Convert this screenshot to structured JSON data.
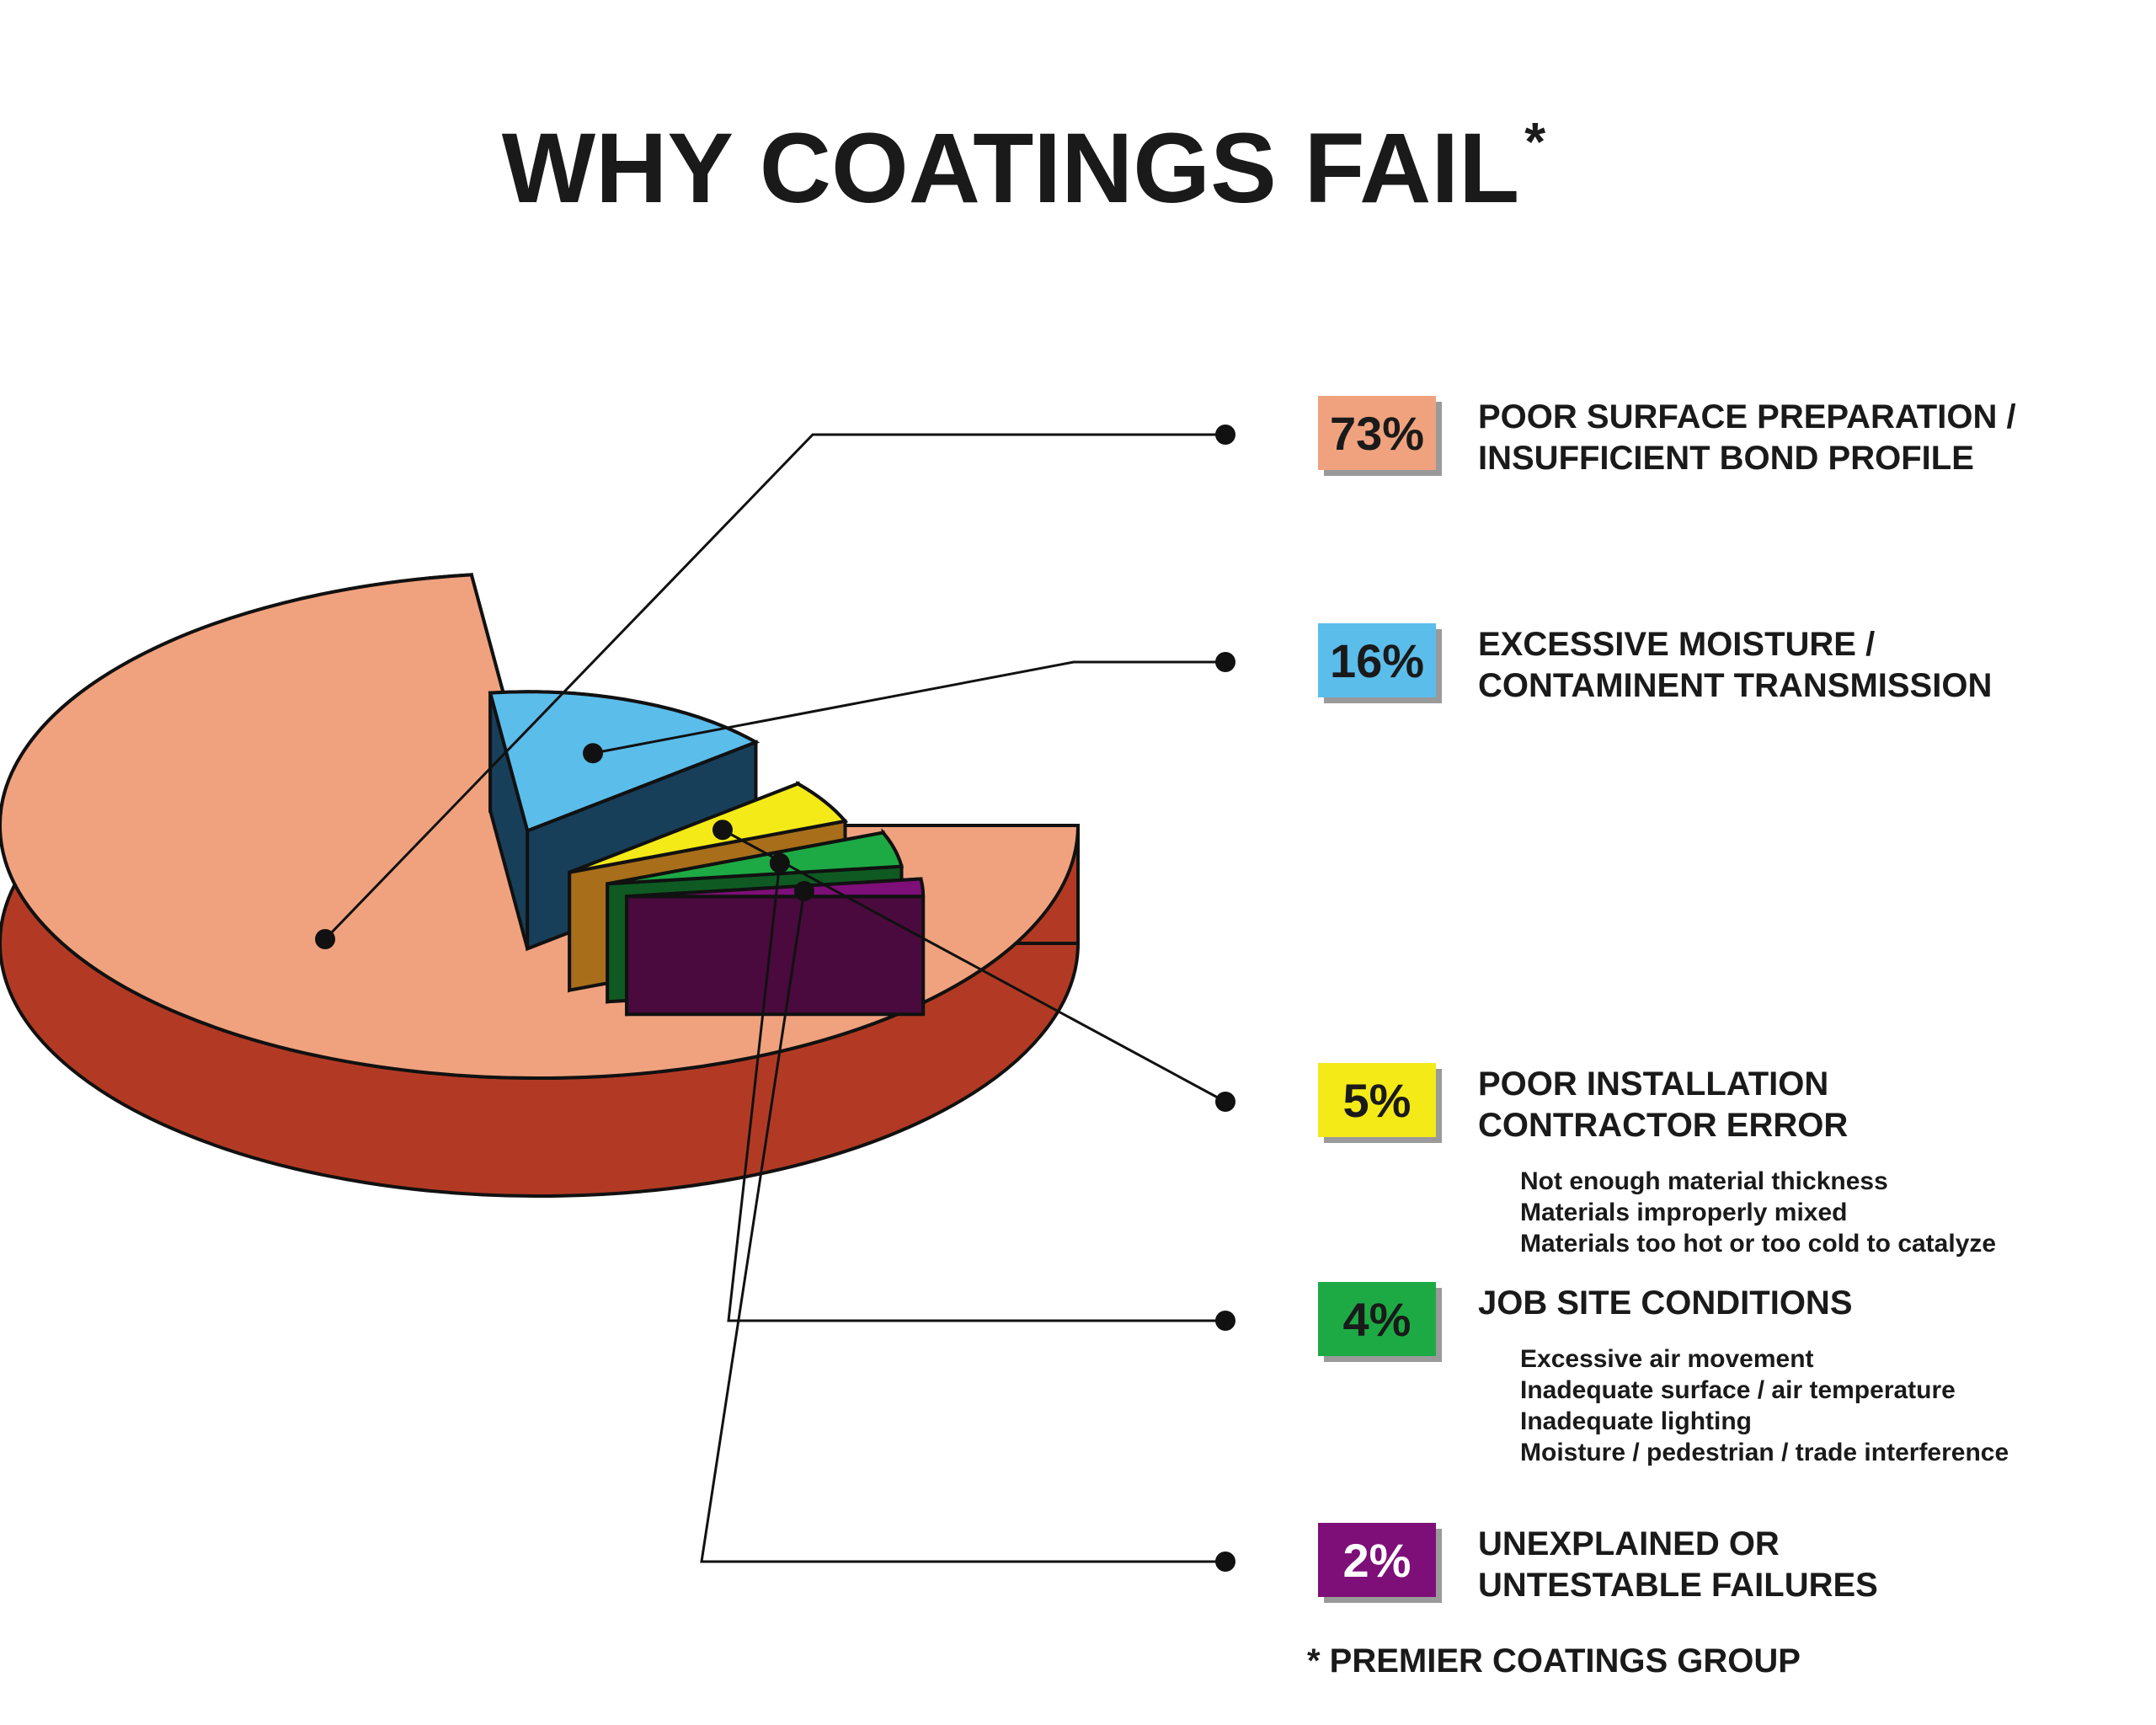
{
  "chart_data": {
    "type": "pie",
    "title": "WHY COATINGS FAIL",
    "title_mark": "*",
    "slices": [
      {
        "label_lines": [
          "POOR SURFACE PREPARATION /",
          "INSUFFICIENT BOND PROFILE"
        ],
        "value": 73,
        "value_label": "73%",
        "color": "#F0A27E",
        "side_color": "#B23A24",
        "details": []
      },
      {
        "label_lines": [
          "EXCESSIVE MOISTURE /",
          "CONTAMINENT TRANSMISSION"
        ],
        "value": 16,
        "value_label": "16%",
        "color": "#5BBDEA",
        "side_color": "#183F5A",
        "details": []
      },
      {
        "label_lines": [
          "POOR INSTALLATION",
          "CONTRACTOR ERROR"
        ],
        "value": 5,
        "value_label": "5%",
        "color": "#F4EA17",
        "side_color": "#A86E1A",
        "details": [
          "Not enough material thickness",
          "Materials improperly mixed",
          "Materials too hot or too cold to catalyze"
        ]
      },
      {
        "label_lines": [
          "JOB SITE CONDITIONS"
        ],
        "value": 4,
        "value_label": "4%",
        "color": "#1DAA45",
        "side_color": "#0F5A22",
        "details": [
          "Excessive air movement",
          "Inadequate surface / air temperature",
          "Inadequate lighting",
          "Moisture / pedestrian / trade interference"
        ]
      },
      {
        "label_lines": [
          "UNEXPLAINED OR",
          "UNTESTABLE FAILURES"
        ],
        "value": 2,
        "value_label": "2%",
        "color": "#7E0E78",
        "side_color": "#4A0A3E",
        "details": []
      }
    ],
    "source_note": "* PREMIER COATINGS GROUP"
  }
}
